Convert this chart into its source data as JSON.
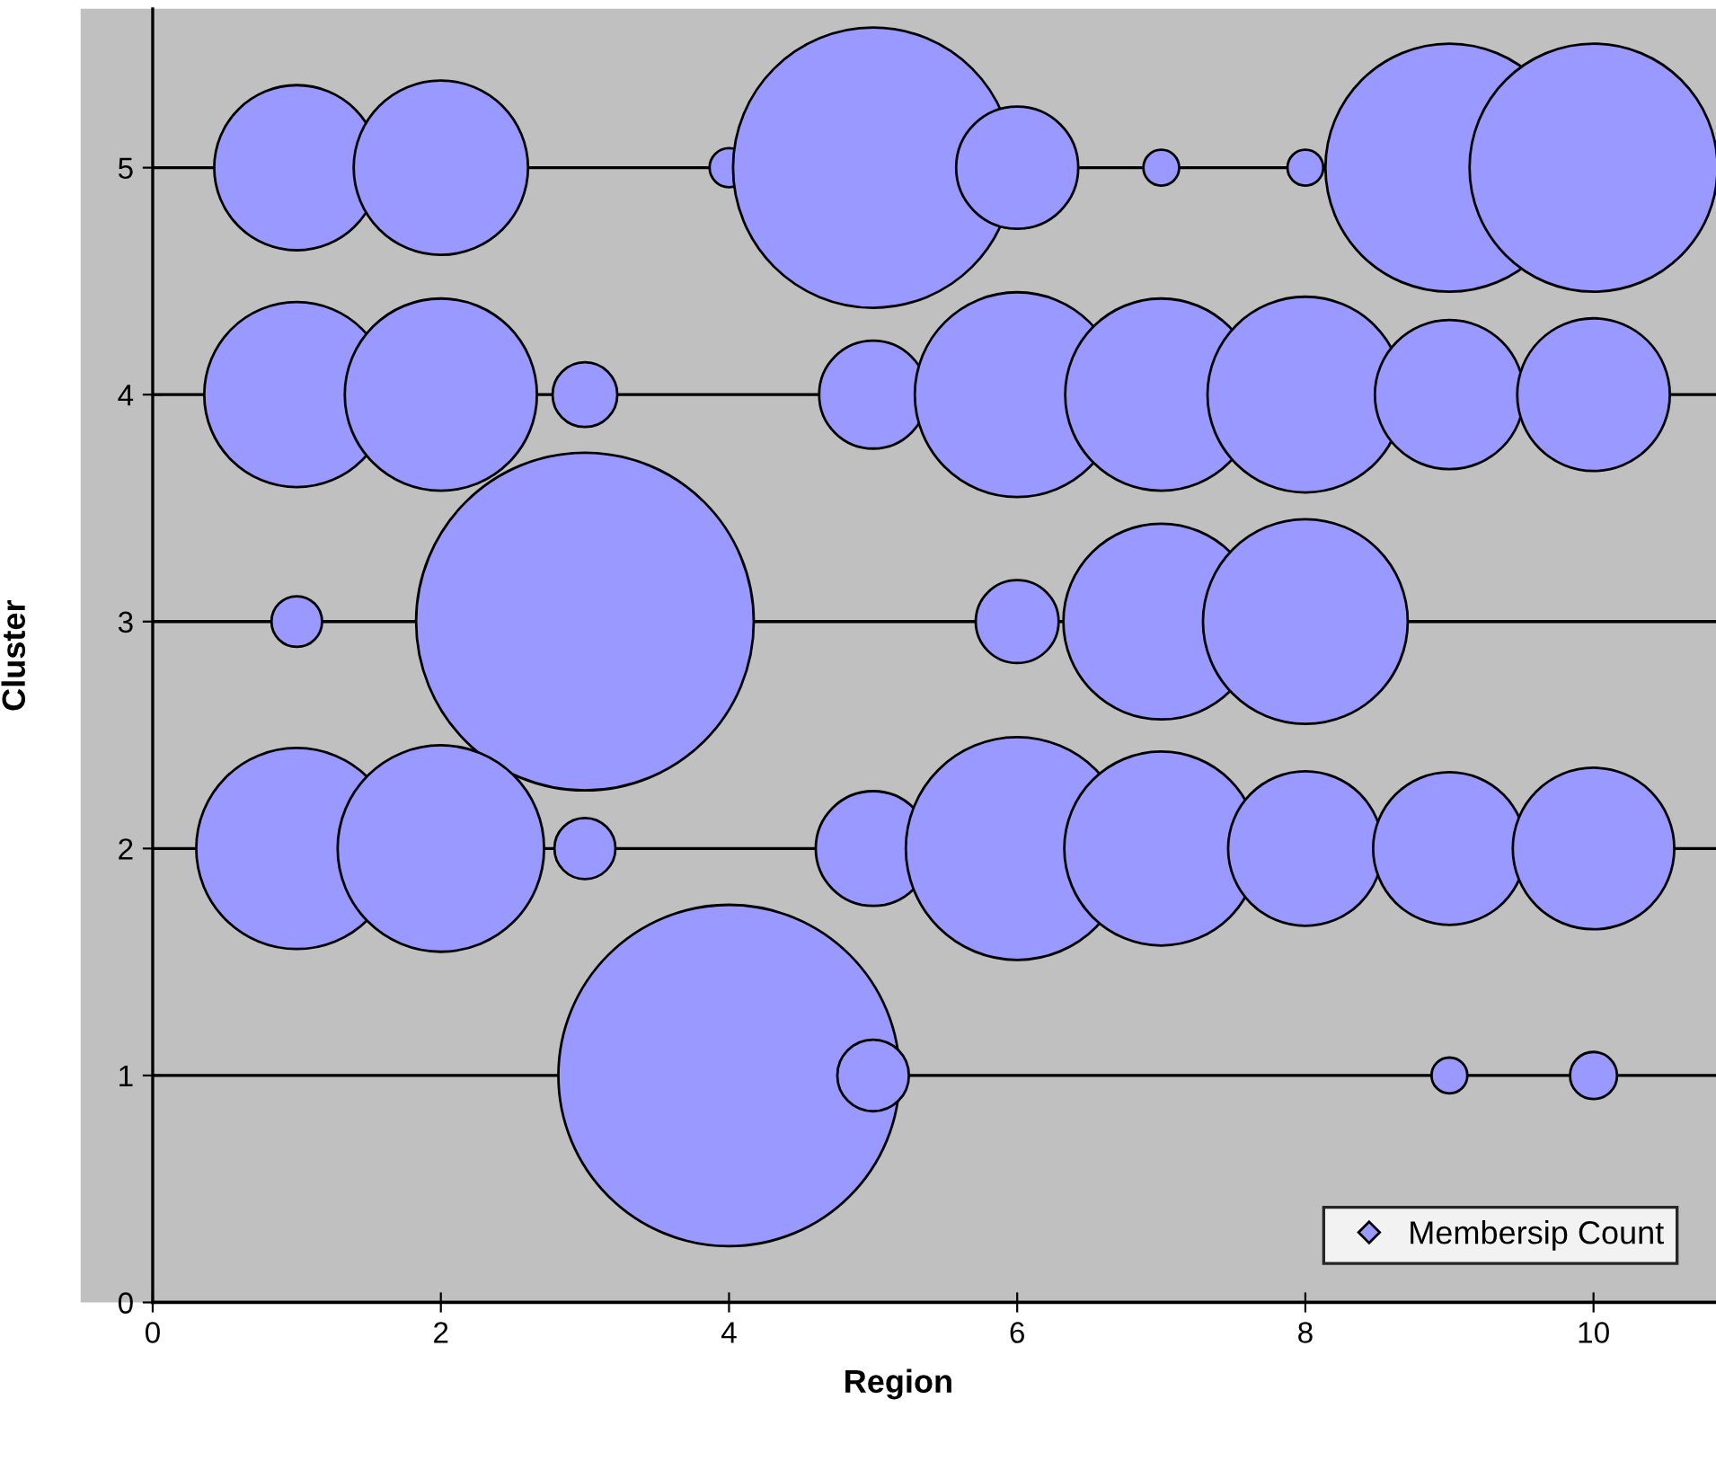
{
  "chart_data": {
    "type": "bubble",
    "xlabel": "Region",
    "ylabel": "Cluster",
    "xlim": [
      -0.5,
      10.85
    ],
    "ylim": [
      0,
      5.7
    ],
    "xticks": [
      0,
      2,
      4,
      6,
      8,
      10
    ],
    "yticks": [
      0,
      1,
      2,
      3,
      4,
      5
    ],
    "grid": "y",
    "legend": "bottom right",
    "series": [
      {
        "name": "Membersip Count",
        "color": "#9999ff",
        "x": [
          1,
          2,
          4,
          5,
          6,
          7,
          8,
          9,
          10,
          1,
          2,
          3,
          5,
          6,
          7,
          8,
          9,
          10,
          1,
          3,
          6,
          7,
          8,
          1,
          2,
          3,
          5,
          6,
          7,
          8,
          9,
          10,
          4,
          5,
          9,
          10
        ],
        "values": [
          5,
          5,
          5,
          5,
          5,
          5,
          5,
          5,
          5,
          4,
          4,
          4,
          4,
          4,
          4,
          4,
          4,
          4,
          3,
          3,
          3,
          3,
          3,
          2,
          2,
          2,
          2,
          2,
          2,
          2,
          2,
          2,
          1,
          1,
          1,
          1
        ],
        "sizes": [
          0.234,
          0.261,
          0.013,
          0.674,
          0.128,
          0.011,
          0.011,
          0.528,
          0.528,
          0.294,
          0.317,
          0.036,
          0.1,
          0.36,
          0.317,
          0.329,
          0.191,
          0.2,
          0.022,
          0.979,
          0.059,
          0.329,
          0.36,
          0.347,
          0.366,
          0.032,
          0.113,
          0.426,
          0.323,
          0.205,
          0.2,
          0.224,
          1,
          0.044,
          0.011,
          0.019
        ]
      }
    ]
  }
}
